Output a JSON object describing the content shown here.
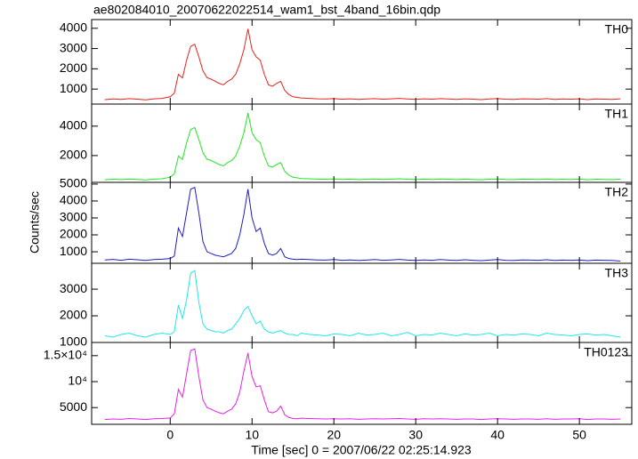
{
  "title": "ae802084010_20070622022514_wam1_bst_4band_16bin.qdp",
  "y_label": "Counts/sec",
  "x_label": "Time [sec] 0 = 2007/06/22 02:25:14.923",
  "chart_data": [
    {
      "type": "line",
      "label": "TH0",
      "color": "#e8211d",
      "x": [
        -8,
        -7,
        -6,
        -5,
        -4,
        -3,
        -2,
        -1,
        0,
        0.5,
        1,
        1.5,
        2,
        2.5,
        3,
        3.5,
        4,
        4.5,
        5,
        5.5,
        6,
        6.5,
        7,
        7.5,
        8,
        8.5,
        9,
        9.5,
        10,
        10.5,
        11,
        11.5,
        12,
        12.5,
        13,
        13.5,
        14,
        14.5,
        15,
        15.5,
        16,
        17,
        18,
        19,
        20,
        21,
        22,
        23,
        24,
        25,
        26,
        27,
        28,
        29,
        30,
        31,
        32,
        33,
        34,
        35,
        36,
        37,
        38,
        39,
        40,
        41,
        42,
        43,
        44,
        45,
        46,
        47,
        48,
        49,
        50,
        51,
        52,
        53,
        54,
        55
      ],
      "values": [
        480,
        510,
        490,
        530,
        500,
        470,
        520,
        540,
        620,
        800,
        1730,
        1550,
        2420,
        3110,
        3210,
        2590,
        1900,
        1560,
        1490,
        1380,
        1280,
        1210,
        1380,
        1490,
        1730,
        2250,
        2940,
        3970,
        2940,
        2590,
        2420,
        1730,
        1210,
        1140,
        1280,
        1380,
        930,
        730,
        620,
        590,
        560,
        540,
        520,
        510,
        530,
        500,
        520,
        490,
        510,
        530,
        500,
        520,
        540,
        510,
        490,
        520,
        500,
        530,
        510,
        490,
        520,
        500,
        480,
        510,
        530,
        500,
        490,
        520,
        510,
        500,
        530,
        490,
        510,
        500,
        520,
        480,
        510,
        500,
        490,
        520
      ],
      "xlim": [
        -9.6,
        56.4
      ],
      "ylim": [
        260,
        4430
      ],
      "xticks": [
        0,
        10,
        20,
        30,
        40,
        50
      ],
      "yticks": [
        1000,
        2000,
        3000,
        4000
      ]
    },
    {
      "type": "line",
      "label": "TH1",
      "color": "#1fe81f",
      "x": [
        -8,
        -7,
        -6,
        -5,
        -4,
        -3,
        -2,
        -1,
        0,
        0.5,
        1,
        1.5,
        2,
        2.5,
        3,
        3.5,
        4,
        4.5,
        5,
        5.5,
        6,
        6.5,
        7,
        7.5,
        8,
        8.5,
        9,
        9.5,
        10,
        10.5,
        11,
        11.5,
        12,
        12.5,
        13,
        13.5,
        14,
        14.5,
        15,
        15.5,
        16,
        17,
        18,
        19,
        20,
        21,
        22,
        23,
        24,
        25,
        26,
        27,
        28,
        29,
        30,
        31,
        32,
        33,
        34,
        35,
        36,
        37,
        38,
        39,
        40,
        41,
        42,
        43,
        44,
        45,
        46,
        47,
        48,
        49,
        50,
        51,
        52,
        53,
        54,
        55
      ],
      "values": [
        360,
        390,
        370,
        410,
        380,
        350,
        400,
        420,
        530,
        760,
        1970,
        1740,
        2870,
        3770,
        3900,
        3090,
        2190,
        1750,
        1660,
        1520,
        1390,
        1300,
        1520,
        1660,
        1970,
        2650,
        3550,
        4890,
        3550,
        3090,
        2870,
        1970,
        1300,
        1210,
        1390,
        1520,
        930,
        670,
        530,
        490,
        440,
        420,
        400,
        390,
        410,
        380,
        400,
        370,
        390,
        410,
        380,
        400,
        420,
        390,
        370,
        400,
        380,
        410,
        390,
        370,
        400,
        380,
        360,
        390,
        410,
        380,
        370,
        400,
        390,
        380,
        410,
        370,
        390,
        380,
        400,
        360,
        390,
        380,
        370,
        400
      ],
      "xlim": [
        -9.6,
        56.4
      ],
      "ylim": [
        180,
        5500
      ],
      "xticks": [
        0,
        10,
        20,
        30,
        40,
        50
      ],
      "yticks": [
        2000,
        4000
      ]
    },
    {
      "type": "line",
      "label": "TH2",
      "color": "#1c1cc8",
      "x": [
        -8,
        -7,
        -6,
        -5,
        -4,
        -3,
        -2,
        -1,
        0,
        0.5,
        1,
        1.5,
        2,
        2.5,
        3,
        3.5,
        4,
        4.5,
        5,
        5.5,
        6,
        6.5,
        7,
        7.5,
        8,
        8.5,
        9,
        9.5,
        10,
        10.5,
        11,
        11.5,
        12,
        12.5,
        13,
        13.5,
        14,
        14.5,
        15,
        15.5,
        16,
        17,
        18,
        19,
        20,
        21,
        22,
        23,
        24,
        25,
        26,
        27,
        28,
        29,
        30,
        31,
        32,
        33,
        34,
        35,
        36,
        37,
        38,
        39,
        40,
        41,
        42,
        43,
        44,
        45,
        46,
        47,
        48,
        49,
        50,
        51,
        52,
        53,
        54,
        55
      ],
      "values": [
        520,
        550,
        500,
        560,
        530,
        490,
        540,
        560,
        600,
        750,
        2400,
        1900,
        3300,
        4700,
        4800,
        3300,
        1600,
        1000,
        900,
        800,
        750,
        700,
        800,
        900,
        1200,
        2000,
        3200,
        4700,
        3000,
        2200,
        2400,
        1500,
        900,
        800,
        900,
        1200,
        700,
        600,
        560,
        540,
        560,
        540,
        520,
        510,
        540,
        500,
        520,
        490,
        510,
        540,
        500,
        520,
        550,
        510,
        490,
        520,
        500,
        540,
        510,
        490,
        530,
        500,
        480,
        510,
        540,
        500,
        490,
        520,
        510,
        500,
        530,
        490,
        510,
        500,
        520,
        480,
        510,
        500,
        490,
        450
      ],
      "xlim": [
        -9.6,
        56.4
      ],
      "ylim": [
        320,
        5100
      ],
      "xticks": [
        0,
        10,
        20,
        30,
        40,
        50
      ],
      "yticks": [
        1000,
        2000,
        3000,
        4000,
        5000
      ]
    },
    {
      "type": "line",
      "label": "TH3",
      "color": "#1fe8e8",
      "x": [
        -8,
        -7,
        -6,
        -5,
        -4,
        -3,
        -2,
        -1,
        0,
        0.5,
        1,
        1.5,
        2,
        2.5,
        3,
        3.5,
        4,
        4.5,
        5,
        5.5,
        6,
        6.5,
        7,
        7.5,
        8,
        8.5,
        9,
        9.5,
        10,
        10.5,
        11,
        11.5,
        12,
        12.5,
        13,
        13.5,
        14,
        14.5,
        15,
        15.5,
        16,
        17,
        18,
        19,
        20,
        21,
        22,
        23,
        24,
        25,
        26,
        27,
        28,
        29,
        30,
        31,
        32,
        33,
        34,
        35,
        36,
        37,
        38,
        39,
        40,
        41,
        42,
        43,
        44,
        45,
        46,
        47,
        48,
        49,
        50,
        51,
        52,
        53,
        54,
        55
      ],
      "values": [
        1250,
        1200,
        1300,
        1350,
        1250,
        1200,
        1300,
        1350,
        1300,
        1400,
        2400,
        1900,
        2600,
        3600,
        3700,
        2500,
        1700,
        1500,
        1450,
        1400,
        1400,
        1350,
        1450,
        1500,
        1700,
        1900,
        2200,
        2350,
        2000,
        1700,
        1800,
        1500,
        1400,
        1350,
        1400,
        1450,
        1350,
        1300,
        1300,
        1250,
        1350,
        1300,
        1280,
        1250,
        1320,
        1300,
        1250,
        1350,
        1280,
        1300,
        1350,
        1250,
        1300,
        1380,
        1250,
        1300,
        1280,
        1350,
        1300,
        1250,
        1320,
        1280,
        1300,
        1350,
        1250,
        1300,
        1280,
        1320,
        1300,
        1250,
        1350,
        1300,
        1280,
        1250,
        1300,
        1320,
        1280,
        1300,
        1250,
        1200
      ],
      "xlim": [
        -9.6,
        56.4
      ],
      "ylim": [
        1000,
        3970
      ],
      "xticks": [
        0,
        10,
        20,
        30,
        40,
        50
      ],
      "yticks": [
        1000,
        2000,
        3000
      ]
    },
    {
      "type": "line",
      "label": "TH0123",
      "color": "#e81fe8",
      "x": [
        -8,
        -7,
        -6,
        -5,
        -4,
        -3,
        -2,
        -1,
        0,
        0.5,
        1,
        1.5,
        2,
        2.5,
        3,
        3.5,
        4,
        4.5,
        5,
        5.5,
        6,
        6.5,
        7,
        7.5,
        8,
        8.5,
        9,
        9.5,
        10,
        10.5,
        11,
        11.5,
        12,
        12.5,
        13,
        13.5,
        14,
        14.5,
        15,
        15.5,
        16,
        17,
        18,
        19,
        20,
        21,
        22,
        23,
        24,
        25,
        26,
        27,
        28,
        29,
        30,
        31,
        32,
        33,
        34,
        35,
        36,
        37,
        38,
        39,
        40,
        41,
        42,
        43,
        44,
        45,
        46,
        47,
        48,
        49,
        50,
        51,
        52,
        53,
        54,
        55
      ],
      "values": [
        2700,
        2800,
        2750,
        2900,
        2800,
        2700,
        2850,
        2900,
        3000,
        3800,
        8500,
        7000,
        11500,
        16000,
        16300,
        11000,
        6500,
        5000,
        4700,
        4300,
        4000,
        3800,
        4300,
        4700,
        5700,
        8000,
        12000,
        15500,
        11000,
        9000,
        9200,
        6500,
        4200,
        4000,
        4300,
        5300,
        3600,
        3100,
        2900,
        2850,
        2950,
        2900,
        2850,
        2800,
        2850,
        2800,
        2850,
        2750,
        2800,
        2850,
        2800,
        2850,
        2900,
        2800,
        2750,
        2850,
        2800,
        2850,
        2800,
        2750,
        2800,
        2800,
        2700,
        2800,
        2850,
        2800,
        2750,
        2800,
        2800,
        2750,
        2850,
        2750,
        2800,
        2800,
        2850,
        2700,
        2800,
        2800,
        2750,
        2800
      ],
      "xlim": [
        -9.6,
        56.4
      ],
      "ylim": [
        1780,
        17540
      ],
      "xticks": [
        0,
        10,
        20,
        30,
        40,
        50
      ],
      "yticks": [
        5000,
        {
          "value": 10000,
          "label": "10⁴"
        },
        {
          "value": 15000,
          "label": "1.5×10⁴"
        }
      ]
    }
  ]
}
